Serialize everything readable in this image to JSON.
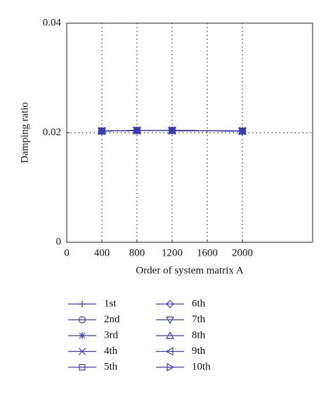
{
  "chart_data": {
    "type": "line",
    "x_label": "Order of system matrix A",
    "y_label": "Damping ratio",
    "x": [
      400,
      800,
      1200,
      2000
    ],
    "xlim": [
      0,
      2800
    ],
    "xticks": [
      0,
      400,
      800,
      1200,
      1600,
      2000
    ],
    "ylim": [
      0,
      0.04
    ],
    "yticks": [
      0,
      0.02,
      0.04
    ],
    "grid": true,
    "series": [
      {
        "name": "1st",
        "color": "#3b3bb3",
        "marker": "plus",
        "values": [
          0.0203,
          0.0204,
          0.0204,
          0.0203
        ]
      },
      {
        "name": "2nd",
        "color": "#3b3bb3",
        "marker": "circle",
        "values": [
          0.0203,
          0.0204,
          0.0204,
          0.0203
        ]
      },
      {
        "name": "3rd",
        "color": "#3b3bb3",
        "marker": "star",
        "values": [
          0.0203,
          0.0204,
          0.0204,
          0.0203
        ]
      },
      {
        "name": "4th",
        "color": "#3b3bb3",
        "marker": "x",
        "values": [
          0.0203,
          0.0204,
          0.0204,
          0.0203
        ]
      },
      {
        "name": "5th",
        "color": "#3b3bb3",
        "marker": "square",
        "values": [
          0.0203,
          0.0204,
          0.0204,
          0.0203
        ]
      },
      {
        "name": "6th",
        "color": "#3b3bb3",
        "marker": "diamond",
        "values": [
          0.0203,
          0.0204,
          0.0204,
          0.0203
        ]
      },
      {
        "name": "7th",
        "color": "#3b3bb3",
        "marker": "triangle-down",
        "values": [
          0.0203,
          0.0204,
          0.0204,
          0.0203
        ]
      },
      {
        "name": "8th",
        "color": "#3b3bb3",
        "marker": "triangle-up",
        "values": [
          0.0203,
          0.0204,
          0.0204,
          0.0203
        ]
      },
      {
        "name": "9th",
        "color": "#3b3bb3",
        "marker": "triangle-left",
        "values": [
          0.0203,
          0.0204,
          0.0204,
          0.0203
        ]
      },
      {
        "name": "10th",
        "color": "#3b3bb3",
        "marker": "triangle-right",
        "values": [
          0.0203,
          0.0204,
          0.0204,
          0.0203
        ]
      }
    ]
  }
}
